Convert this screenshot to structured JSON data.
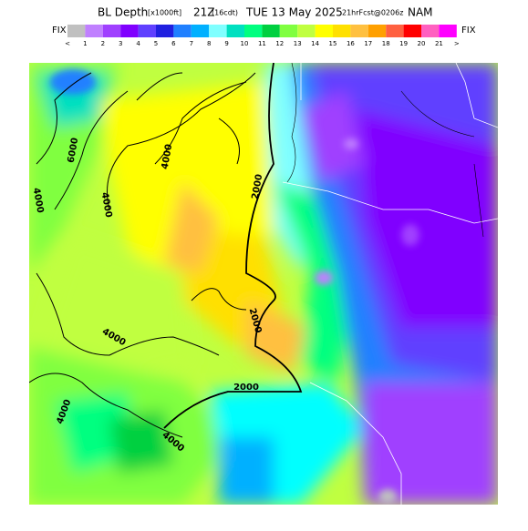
{
  "header": {
    "title_main": "BL Depth",
    "title_units": "[x1000ft]",
    "title_time": "21Z",
    "title_local": "(16cdt)",
    "title_date": "TUE 13 May 2025",
    "title_fcst": "21hrFcst@0206z",
    "title_model": "NAM"
  },
  "colorbar": {
    "left_label": "FIX",
    "right_label": "FIX",
    "labels": [
      "<",
      "1",
      "2",
      "3",
      "4",
      "5",
      "6",
      "7",
      "8",
      "9",
      "10",
      "11",
      "12",
      "13",
      "14",
      "15",
      "16",
      "17",
      "18",
      "19",
      "20",
      "21",
      ">"
    ],
    "colors": [
      "#c0c0c0",
      "#c080ff",
      "#a040ff",
      "#8000ff",
      "#6040ff",
      "#2020e0",
      "#2080ff",
      "#00b0ff",
      "#80ffff",
      "#00e0c0",
      "#00ff80",
      "#00d040",
      "#80ff40",
      "#c0ff40",
      "#ffff00",
      "#ffe000",
      "#ffc040",
      "#ffa000",
      "#ff6040",
      "#ff0000",
      "#ff60c0",
      "#ff00ff"
    ]
  },
  "contour_labels": [
    {
      "text": "6000"
    },
    {
      "text": "4000"
    },
    {
      "text": "4000"
    },
    {
      "text": "2000"
    },
    {
      "text": "2000"
    },
    {
      "text": "2000"
    },
    {
      "text": "4000"
    },
    {
      "text": "4000"
    },
    {
      "text": "4000"
    },
    {
      "text": "4000"
    }
  ]
}
